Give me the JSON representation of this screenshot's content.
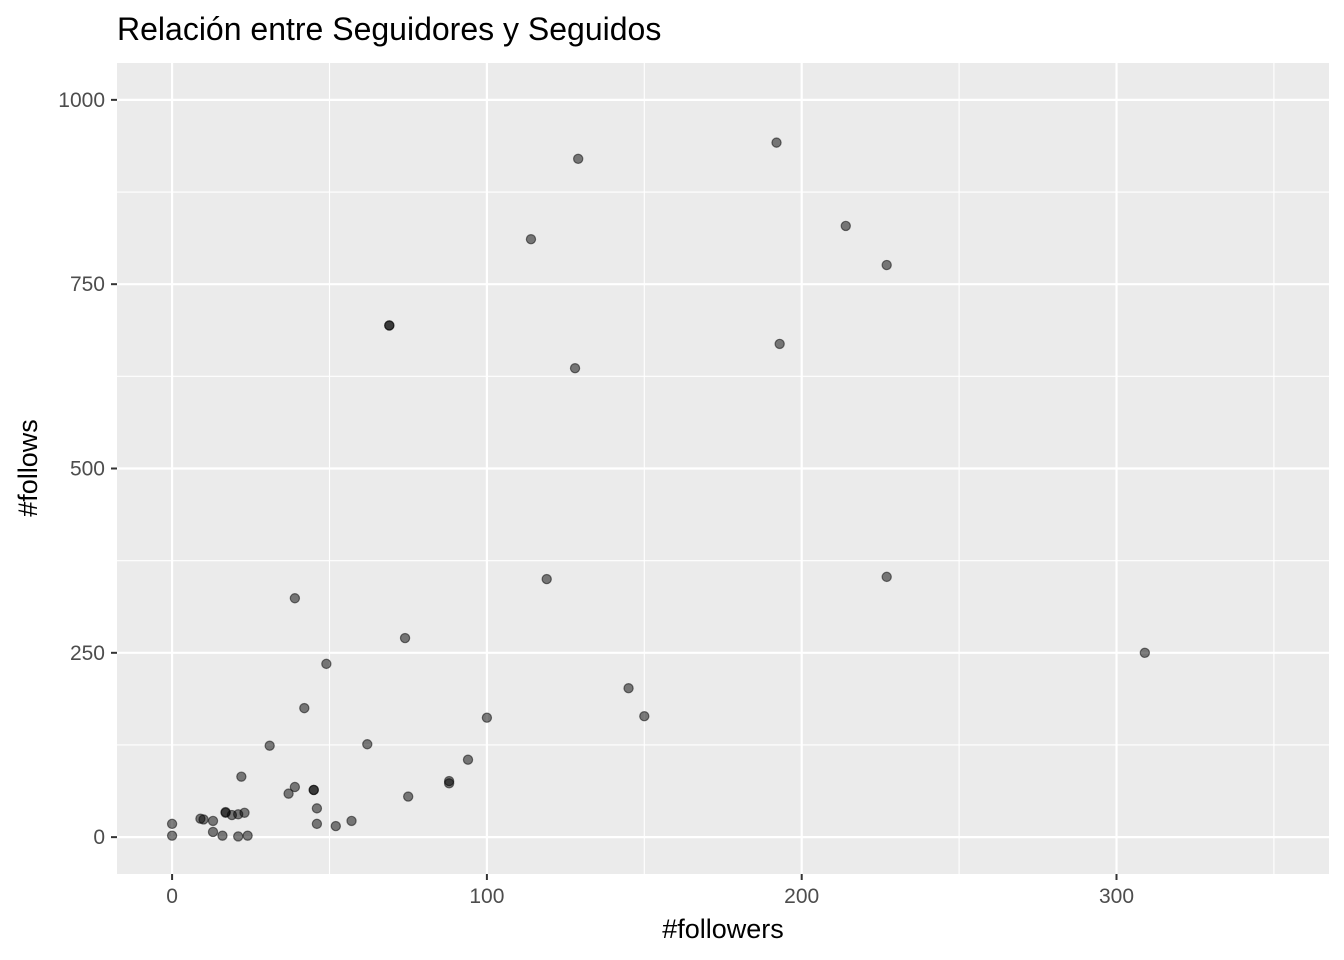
{
  "chart_data": {
    "type": "scatter",
    "title": "Relación entre Seguidores y Seguidos",
    "xlabel": "#followers",
    "ylabel": "#follows",
    "xlim": [
      -17.5,
      367.5
    ],
    "ylim": [
      -50,
      1050
    ],
    "x_ticks": [
      0,
      100,
      200,
      300
    ],
    "y_ticks": [
      0,
      250,
      500,
      750,
      1000
    ],
    "x_tick_labels": [
      "0",
      "100",
      "200",
      "300"
    ],
    "y_tick_labels": [
      "0",
      "250",
      "500",
      "750",
      "1000"
    ],
    "grid": true,
    "legend": "none",
    "colors": {
      "panel": "#ebebeb",
      "grid": "#ffffff",
      "point": "#000000",
      "point_opacity": 0.5,
      "tick": "#333333"
    },
    "points": [
      {
        "x": 0,
        "y": 18
      },
      {
        "x": 0,
        "y": 2
      },
      {
        "x": 9,
        "y": 25
      },
      {
        "x": 10,
        "y": 24
      },
      {
        "x": 13,
        "y": 22
      },
      {
        "x": 13,
        "y": 7
      },
      {
        "x": 16,
        "y": 2
      },
      {
        "x": 17,
        "y": 34
      },
      {
        "x": 17,
        "y": 33
      },
      {
        "x": 19,
        "y": 30
      },
      {
        "x": 21,
        "y": 31
      },
      {
        "x": 21,
        "y": 1
      },
      {
        "x": 22,
        "y": 82
      },
      {
        "x": 23,
        "y": 33
      },
      {
        "x": 24,
        "y": 2
      },
      {
        "x": 31,
        "y": 124
      },
      {
        "x": 37,
        "y": 59
      },
      {
        "x": 39,
        "y": 68
      },
      {
        "x": 39,
        "y": 324
      },
      {
        "x": 42,
        "y": 175
      },
      {
        "x": 45,
        "y": 64
      },
      {
        "x": 45,
        "y": 64
      },
      {
        "x": 46,
        "y": 39
      },
      {
        "x": 46,
        "y": 18
      },
      {
        "x": 49,
        "y": 235
      },
      {
        "x": 52,
        "y": 15
      },
      {
        "x": 57,
        "y": 22
      },
      {
        "x": 62,
        "y": 126
      },
      {
        "x": 69,
        "y": 694
      },
      {
        "x": 69,
        "y": 694
      },
      {
        "x": 74,
        "y": 270
      },
      {
        "x": 75,
        "y": 55
      },
      {
        "x": 88,
        "y": 76
      },
      {
        "x": 88,
        "y": 73
      },
      {
        "x": 94,
        "y": 105
      },
      {
        "x": 100,
        "y": 162
      },
      {
        "x": 114,
        "y": 811
      },
      {
        "x": 119,
        "y": 350
      },
      {
        "x": 128,
        "y": 636
      },
      {
        "x": 129,
        "y": 920
      },
      {
        "x": 145,
        "y": 202
      },
      {
        "x": 150,
        "y": 164
      },
      {
        "x": 192,
        "y": 942
      },
      {
        "x": 193,
        "y": 669
      },
      {
        "x": 214,
        "y": 829
      },
      {
        "x": 227,
        "y": 776
      },
      {
        "x": 227,
        "y": 353
      },
      {
        "x": 309,
        "y": 250
      }
    ]
  }
}
